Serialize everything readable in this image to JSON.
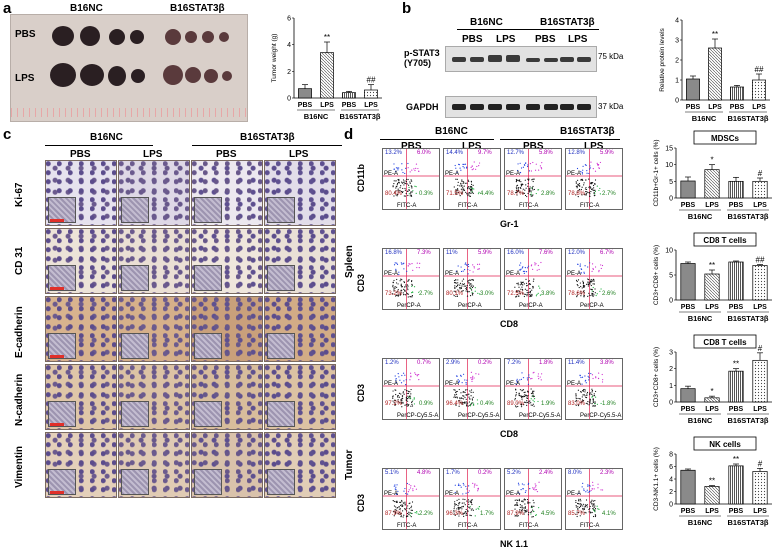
{
  "panel_letters": {
    "a": "a",
    "b": "b",
    "c": "c",
    "d": "d"
  },
  "panel_a": {
    "group_nc": "B16NC",
    "group_stat": "B16STAT3β",
    "row_pbs": "PBS",
    "row_lps": "LPS",
    "ytitle": "Tumor weight (g)"
  },
  "panel_b": {
    "group_nc": "B16NC",
    "group_stat": "B16STAT3β",
    "lane_labels": [
      "PBS",
      "LPS",
      "PBS",
      "LPS"
    ],
    "blot1_label": "p-STAT3 (Y705)",
    "blot2_label": "GAPDH",
    "kda1": "75 kDa",
    "kda2": "37 kDa",
    "ytitle": "Relative protein levels"
  },
  "panel_c": {
    "group_nc": "B16NC",
    "group_stat": "B16STAT3β",
    "cols": [
      "PBS",
      "LPS",
      "PBS",
      "LPS"
    ],
    "rows": [
      "Ki-67",
      "CD 31",
      "E-cadherin",
      "N-cadherin",
      "Vimentin"
    ]
  },
  "panel_d": {
    "group_nc": "B16NC",
    "group_stat": "B16STAT3β",
    "cols": [
      "PBS",
      "LPS",
      "PBS",
      "LPS"
    ],
    "spleen_label": "Spleen",
    "tumor_label": "Tumor",
    "flow_rows": [
      {
        "ylabel": "CD11b",
        "xlabel": "Gr-1",
        "axis_x": "FITC-A",
        "axis_y": "PE-A",
        "q": [
          [
            "13.2%",
            "6.0%",
            "80.4%",
            "0.3%"
          ],
          [
            "14.4%",
            "9.7%",
            "71.5%",
            "4.4%"
          ],
          [
            "12.7%",
            "5.8%",
            "78.7%",
            "2.8%"
          ],
          [
            "12.8%",
            "5.9%",
            "78.8%",
            "2.7%"
          ]
        ]
      },
      {
        "ylabel": "CD3",
        "xlabel": "CD8",
        "axis_x": "PerCP-A",
        "axis_y": "PE-A",
        "q": [
          [
            "16.8%",
            "7.3%",
            "73.2%",
            "2.7%"
          ],
          [
            "11%",
            "5.9%",
            "80.1%",
            "3.0%"
          ],
          [
            "16.0%",
            "7.6%",
            "72.5%",
            "3.8%"
          ],
          [
            "12.0%",
            "6.7%",
            "78.6%",
            "2.6%"
          ]
        ]
      },
      {
        "ylabel": "CD3",
        "xlabel": "CD8",
        "axis_x": "PerCP-Cy5.5-A",
        "axis_y": "PE-A",
        "q": [
          [
            "1.2%",
            "0.7%",
            "97.2%",
            "0.9%"
          ],
          [
            "2.9%",
            "0.2%",
            "96.4%",
            "0.4%"
          ],
          [
            "7.2%",
            "1.8%",
            "89.0%",
            "1.9%"
          ],
          [
            "11.4%",
            "3.8%",
            "83.0%",
            "1.8%"
          ]
        ]
      },
      {
        "ylabel": "CD3",
        "xlabel": "NK 1.1",
        "axis_x": "FITC-A",
        "axis_y": "PE-A",
        "q": [
          [
            "5.1%",
            "4.8%",
            "87.9%",
            "2.2%"
          ],
          [
            "1.7%",
            "0.2%",
            "96.3%",
            "1.7%"
          ],
          [
            "5.2%",
            "2.4%",
            "87.9%",
            "4.5%"
          ],
          [
            "8.0%",
            "2.3%",
            "85.7%",
            "4.1%"
          ]
        ]
      }
    ]
  },
  "colors": {
    "bar_fill": "#8a8a8a",
    "bar_edge": "#000000",
    "hatch": "#555555"
  },
  "chart_data": [
    {
      "id": "tumor-weight",
      "type": "bar",
      "categories": [
        "PBS",
        "LPS",
        "PBS",
        "LPS"
      ],
      "groups": [
        "B16NC",
        "B16STAT3β"
      ],
      "values": [
        0.7,
        3.4,
        0.4,
        0.6
      ],
      "errors": [
        0.3,
        0.8,
        0.1,
        0.4
      ],
      "annotations": [
        "",
        "**",
        "",
        "##"
      ],
      "ylabel": "Tumor weight (g)",
      "ylim": [
        0,
        6
      ],
      "yticks": [
        0,
        2,
        4,
        6
      ]
    },
    {
      "id": "protein-levels",
      "type": "bar",
      "categories": [
        "PBS",
        "LPS",
        "PBS",
        "LPS"
      ],
      "groups": [
        "B16NC",
        "B16STAT3β"
      ],
      "values": [
        1.05,
        2.6,
        0.65,
        1.0
      ],
      "errors": [
        0.15,
        0.45,
        0.08,
        0.3
      ],
      "annotations": [
        "",
        "**",
        "",
        "##"
      ],
      "ylabel": "Relative protein levels",
      "ylim": [
        0,
        4
      ],
      "yticks": [
        0,
        1,
        2,
        3,
        4
      ]
    },
    {
      "id": "mdscs",
      "type": "bar",
      "title": "MDSCs",
      "categories": [
        "PBS",
        "LPS",
        "PBS",
        "LPS"
      ],
      "groups": [
        "B16NC",
        "B16STAT3β"
      ],
      "values": [
        5.1,
        8.5,
        5.0,
        5.0
      ],
      "errors": [
        1.2,
        1.5,
        1.2,
        1.0
      ],
      "annotations": [
        "",
        "*",
        "",
        "#"
      ],
      "ylabel": "CD11b+Gr-1+ cells (%)",
      "ylim": [
        0,
        15
      ],
      "yticks": [
        0,
        5,
        10,
        15
      ]
    },
    {
      "id": "cd8-spleen",
      "type": "bar",
      "title": "CD8 T cells",
      "categories": [
        "PBS",
        "LPS",
        "PBS",
        "LPS"
      ],
      "groups": [
        "B16NC",
        "B16STAT3β"
      ],
      "values": [
        7.3,
        5.2,
        7.6,
        6.9
      ],
      "errors": [
        0.3,
        0.8,
        0.2,
        0.2
      ],
      "annotations": [
        "",
        "**",
        "",
        "##"
      ],
      "ylabel": "CD3+CD8+ cells (%)",
      "ylim": [
        0,
        10
      ],
      "yticks": [
        0,
        5,
        10
      ]
    },
    {
      "id": "cd8-tumor",
      "type": "bar",
      "title": "CD8 T cells",
      "categories": [
        "PBS",
        "LPS",
        "PBS",
        "LPS"
      ],
      "groups": [
        "B16NC",
        "B16STAT3β"
      ],
      "values": [
        0.8,
        0.25,
        1.85,
        2.5
      ],
      "errors": [
        0.15,
        0.1,
        0.15,
        0.45
      ],
      "annotations": [
        "",
        "*",
        "**",
        "#"
      ],
      "ylabel": "CD3+CD8+ cells (%)",
      "ylim": [
        0,
        3
      ],
      "yticks": [
        0,
        1,
        2,
        3
      ]
    },
    {
      "id": "nk-cells",
      "type": "bar",
      "title": "NK cells",
      "categories": [
        "PBS",
        "LPS",
        "PBS",
        "LPS"
      ],
      "groups": [
        "B16NC",
        "B16STAT3β"
      ],
      "values": [
        5.4,
        2.8,
        6.1,
        5.2
      ],
      "errors": [
        0.2,
        0.15,
        0.3,
        0.5
      ],
      "annotations": [
        "",
        "**",
        "**",
        "#"
      ],
      "ylabel": "CD3-NK1.1+ cells (%)",
      "ylim": [
        0,
        8
      ],
      "yticks": [
        0,
        2,
        4,
        6,
        8
      ]
    }
  ]
}
